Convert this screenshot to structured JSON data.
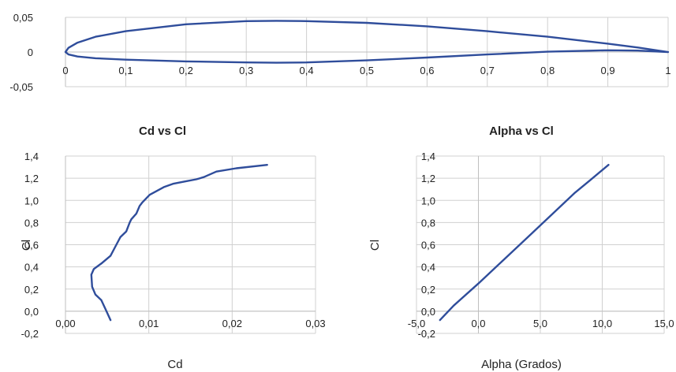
{
  "chart_data": [
    {
      "type": "line",
      "title": "",
      "xlabel": "",
      "ylabel": "",
      "xlim": [
        0,
        1
      ],
      "ylim": [
        -0.05,
        0.05
      ],
      "grid": true,
      "x_ticks": [
        "0",
        "0,1",
        "0,2",
        "0,3",
        "0,4",
        "0,5",
        "0,6",
        "0,7",
        "0,8",
        "0,9",
        "1"
      ],
      "y_ticks": [
        "0,05",
        "0",
        "-0,05"
      ],
      "color": "#2f4d9b",
      "series": [
        {
          "x": [
            1.0,
            0.95,
            0.9,
            0.8,
            0.7,
            0.6,
            0.5,
            0.4,
            0.35,
            0.3,
            0.2,
            0.1,
            0.05,
            0.02,
            0.005,
            0.0,
            0.005,
            0.02,
            0.05,
            0.1,
            0.2,
            0.3,
            0.35,
            0.4,
            0.5,
            0.6,
            0.7,
            0.8,
            0.9,
            0.95,
            1.0
          ],
          "y": [
            0.0,
            0.0065,
            0.012,
            0.022,
            0.03,
            0.037,
            0.042,
            0.0445,
            0.045,
            0.0445,
            0.04,
            0.03,
            0.022,
            0.0135,
            0.006,
            0.0,
            -0.0035,
            -0.0065,
            -0.009,
            -0.011,
            -0.0135,
            -0.015,
            -0.0155,
            -0.015,
            -0.012,
            -0.008,
            -0.0035,
            0.0005,
            0.0025,
            0.002,
            0.0
          ]
        }
      ]
    },
    {
      "type": "line",
      "title": "Cd vs Cl",
      "xlabel": "Cd",
      "ylabel": "Cl",
      "xlim": [
        0,
        0.03
      ],
      "ylim": [
        -0.2,
        1.4
      ],
      "grid": true,
      "x_ticks": [
        "0,00",
        "0,01",
        "0,02",
        "0,03"
      ],
      "y_ticks": [
        "1,4",
        "1,2",
        "1,0",
        "0,8",
        "0,6",
        "0,4",
        "0,2",
        "0,0",
        "-0,2"
      ],
      "color": "#2f4d9b",
      "series": [
        {
          "x": [
            0.0054,
            0.0048,
            0.0043,
            0.0036,
            0.0032,
            0.0031,
            0.0034,
            0.0043,
            0.0054,
            0.0061,
            0.0066,
            0.0073,
            0.0077,
            0.0079,
            0.0085,
            0.0089,
            0.0092,
            0.0101,
            0.0118,
            0.0129,
            0.0143,
            0.0157,
            0.0166,
            0.0181,
            0.0205,
            0.0242
          ],
          "y": [
            -0.08,
            0.02,
            0.1,
            0.15,
            0.22,
            0.33,
            0.38,
            0.43,
            0.5,
            0.6,
            0.67,
            0.72,
            0.8,
            0.83,
            0.88,
            0.95,
            0.98,
            1.05,
            1.12,
            1.15,
            1.17,
            1.19,
            1.21,
            1.26,
            1.29,
            1.32
          ]
        }
      ]
    },
    {
      "type": "line",
      "title": "Alpha vs Cl",
      "xlabel": "Alpha (Grados)",
      "ylabel": "Cl",
      "xlim": [
        -5,
        15
      ],
      "ylim": [
        -0.2,
        1.4
      ],
      "grid": true,
      "x_ticks": [
        "-5,0",
        "0,0",
        "5,0",
        "10,0",
        "15,0"
      ],
      "y_ticks": [
        "1,4",
        "1,2",
        "1,0",
        "0,8",
        "0,6",
        "0,4",
        "0,2",
        "0,0",
        "-0,2"
      ],
      "color": "#2f4d9b",
      "series": [
        {
          "x": [
            -3.1,
            -2.0,
            0.0,
            2.0,
            4.0,
            6.0,
            7.8,
            9.0,
            10.5
          ],
          "y": [
            -0.08,
            0.05,
            0.25,
            0.46,
            0.67,
            0.88,
            1.07,
            1.18,
            1.32
          ]
        }
      ]
    }
  ]
}
